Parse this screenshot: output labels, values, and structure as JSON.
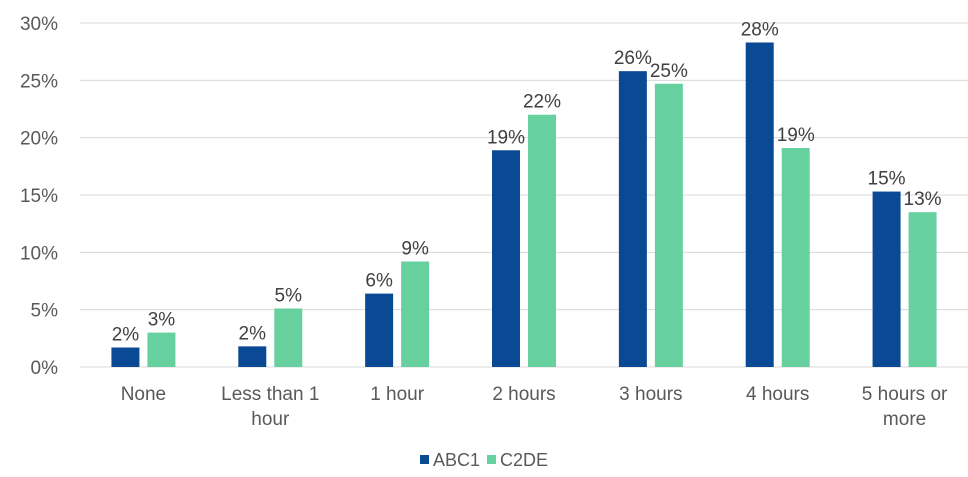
{
  "chart_data": {
    "type": "bar",
    "title": "",
    "xlabel": "",
    "ylabel": "",
    "ylim": [
      0,
      30
    ],
    "yticks": [
      0,
      5,
      10,
      15,
      20,
      25,
      30
    ],
    "ytick_labels": [
      "0%",
      "5%",
      "10%",
      "15%",
      "20%",
      "25%",
      "30%"
    ],
    "grid": true,
    "legend_position": "bottom",
    "categories": [
      [
        "None"
      ],
      [
        "Less than 1",
        "hour"
      ],
      [
        "1 hour"
      ],
      [
        "2 hours"
      ],
      [
        "3 hours"
      ],
      [
        "4 hours"
      ],
      [
        "5 hours or",
        "more"
      ]
    ],
    "series": [
      {
        "name": "ABC1",
        "color": "#0a4a94",
        "values": [
          1.7,
          1.8,
          6.4,
          18.9,
          25.8,
          28.3,
          15.3
        ],
        "labels": [
          "2%",
          "2%",
          "6%",
          "19%",
          "26%",
          "28%",
          "15%"
        ]
      },
      {
        "name": "C2DE",
        "color": "#66d19e",
        "values": [
          3.0,
          5.1,
          9.2,
          22.0,
          24.7,
          19.1,
          13.5
        ],
        "labels": [
          "3%",
          "5%",
          "9%",
          "22%",
          "25%",
          "19%",
          "13%"
        ]
      }
    ]
  }
}
